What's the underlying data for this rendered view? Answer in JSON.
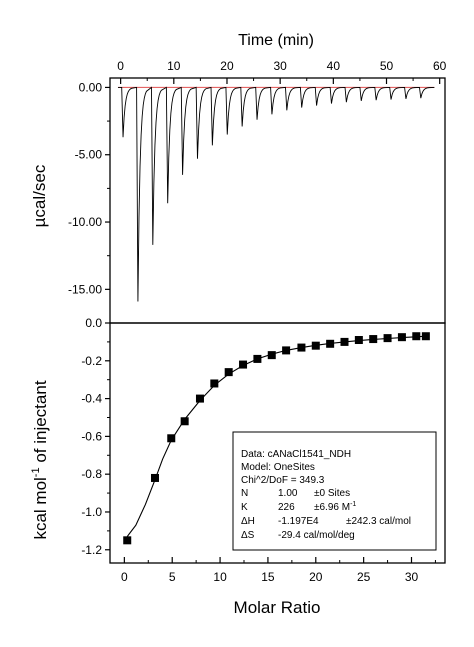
{
  "chart_data": [
    {
      "type": "line",
      "panel": "top",
      "xlabel": "Time (min)",
      "ylabel": "µcal/sec",
      "xlim": [
        -2,
        61
      ],
      "ylim": [
        -17.5,
        0.7
      ],
      "xticks": [
        0,
        10,
        20,
        30,
        40,
        50,
        60
      ],
      "xtick_labels": [
        "0",
        "10",
        "20",
        "30",
        "40",
        "50",
        "60"
      ],
      "xticks_minor": [
        5,
        15,
        25,
        35,
        45,
        55
      ],
      "yticks": [
        0,
        -5,
        -10,
        -15
      ],
      "ytick_labels": [
        "0.00",
        "-5.00",
        "-10.00",
        "-15.00"
      ],
      "baseline_color": "#e05050",
      "trace_color": "#000000",
      "injections": {
        "times": [
          0.2,
          3.0,
          5.8,
          8.6,
          11.4,
          14.2,
          17.0,
          19.8,
          22.6,
          25.4,
          28.2,
          31.0,
          33.8,
          36.6,
          39.4,
          42.2,
          45.0,
          47.8,
          50.6,
          53.4,
          56.2
        ],
        "peak_values": [
          -3.7,
          -15.9,
          -11.7,
          -8.6,
          -6.5,
          -5.3,
          -4.3,
          -3.5,
          -2.9,
          -2.4,
          -2.0,
          -1.7,
          -1.5,
          -1.35,
          -1.2,
          -1.1,
          -1.0,
          -0.95,
          -0.9,
          -0.85,
          -0.8
        ]
      },
      "grid": false,
      "axes": "box"
    },
    {
      "type": "scatter",
      "panel": "bottom",
      "xlabel": "Molar Ratio",
      "ylabel": "kcal mol",
      "ylabel_sup": "-1",
      "ylabel_rest": " of injectant",
      "xlim": [
        -1.5,
        33.5
      ],
      "ylim": [
        -1.27,
        0.0
      ],
      "xticks": [
        0,
        5,
        10,
        15,
        20,
        25,
        30
      ],
      "xtick_labels": [
        "0",
        "5",
        "10",
        "15",
        "20",
        "25",
        "30"
      ],
      "yticks": [
        0.0,
        -0.2,
        -0.4,
        -0.6,
        -0.8,
        -1.0,
        -1.2
      ],
      "ytick_labels": [
        "0.0",
        "-0.2",
        "-0.4",
        "-0.6",
        "-0.8",
        "-1.0",
        "-1.2"
      ],
      "marker": "square",
      "x": [
        0.3,
        3.2,
        4.9,
        6.3,
        7.9,
        9.4,
        10.9,
        12.4,
        13.9,
        15.4,
        16.9,
        18.5,
        20.0,
        21.5,
        23.0,
        24.5,
        26.0,
        27.5,
        29.0,
        30.5,
        31.5
      ],
      "y": [
        -1.15,
        -0.82,
        -0.61,
        -0.52,
        -0.4,
        -0.32,
        -0.26,
        -0.22,
        -0.19,
        -0.17,
        -0.145,
        -0.13,
        -0.12,
        -0.11,
        -0.1,
        -0.09,
        -0.085,
        -0.08,
        -0.075,
        -0.07,
        -0.07
      ],
      "fit_x": [
        0.3,
        1.2,
        2.2,
        3.2,
        4.0,
        4.9,
        6.3,
        7.9,
        9.4,
        10.9,
        12.4,
        13.9,
        15.4,
        16.9,
        18.5,
        20.0,
        21.5,
        23.0,
        24.5,
        26.0,
        27.5,
        29.0,
        30.5,
        31.5
      ],
      "fit_y": [
        -1.13,
        -1.07,
        -0.96,
        -0.83,
        -0.72,
        -0.62,
        -0.51,
        -0.41,
        -0.33,
        -0.27,
        -0.225,
        -0.19,
        -0.165,
        -0.145,
        -0.13,
        -0.118,
        -0.108,
        -0.1,
        -0.093,
        -0.087,
        -0.082,
        -0.077,
        -0.073,
        -0.07
      ],
      "grid": false,
      "axes": "box",
      "legend": "bottom-right",
      "annotation": {
        "data_line": "Data: cANaCl1541_NDH",
        "model_line": "Model: OneSites",
        "chi_line": "Chi^2/DoF = 349.3",
        "params": [
          {
            "name": "N",
            "value": "1.00",
            "error": "±0",
            "unit": "Sites",
            "unit_sup": ""
          },
          {
            "name": "K",
            "value": "226",
            "error": "±6.96",
            "unit": "M",
            "unit_sup": "-1"
          },
          {
            "name": "ΔH",
            "value": "-1.197E4",
            "error": "±242.3",
            "unit": "cal/mol",
            "unit_sup": ""
          },
          {
            "name": "ΔS",
            "value": "-29.4",
            "error": "",
            "unit": "cal/mol/deg",
            "unit_sup": ""
          }
        ]
      }
    }
  ]
}
